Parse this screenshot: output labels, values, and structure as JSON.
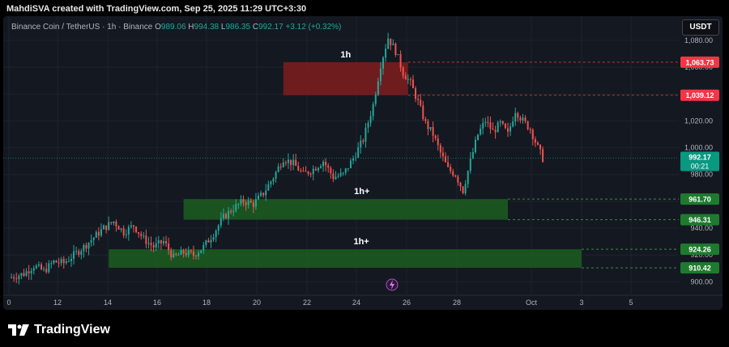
{
  "header": {
    "attribution": "MahdiSVA created with TradingView.com, Sep 25, 2025 11:29 UTC+3:30"
  },
  "legend": {
    "symbol": "Binance Coin / TetherUS · 1h · Binance",
    "o_label": "O",
    "o_value": "989.06",
    "h_label": "H",
    "h_value": "994.38",
    "l_label": "L",
    "l_value": "986.35",
    "c_label": "C",
    "c_value": "992.17",
    "change": "+3.12 (+0.32%)"
  },
  "currency_button": "USDT",
  "colors": {
    "up": "#26a69a",
    "down": "#ef5350",
    "supply_zone": "#7f1d1d",
    "demand_zone": "#1b5e20",
    "red_label": "#f23645",
    "green_label": "#1e7b2e",
    "price_label": "#089981"
  },
  "chart_data": {
    "type": "candlestick",
    "title": "",
    "x_ticks": [
      "0",
      "12",
      "14",
      "16",
      "18",
      "20",
      "22",
      "24",
      "26",
      "28",
      "Oct",
      "3",
      "5"
    ],
    "y_ticks": [
      "900.00",
      "920.00",
      "940.00",
      "960.00",
      "980.00",
      "1,000.00",
      "1,020.00",
      "1,040.00",
      "1,060.00",
      "1,080.00"
    ],
    "ylim": [
      893,
      1092
    ],
    "last_price": "992.17",
    "countdown": "00:21",
    "zones": [
      {
        "label": "1h",
        "kind": "supply",
        "low": 1039.12,
        "high": 1063.73,
        "low_label": "1,039.12",
        "high_label": "1,063.73",
        "start": "Sep 21",
        "end": "Sep 26"
      },
      {
        "label": "1h+",
        "kind": "demand",
        "low": 946.31,
        "high": 961.7,
        "low_label": "946.31",
        "high_label": "961.70",
        "start": "Sep 17",
        "end": "Sep 30"
      },
      {
        "label": "1h+",
        "kind": "demand",
        "low": 910.42,
        "high": 924.26,
        "low_label": "910.42",
        "high_label": "924.26",
        "start": "Sep 14",
        "end": "Oct 3"
      }
    ],
    "price_path": [
      [
        0.0,
        903
      ],
      [
        0.6,
        906
      ],
      [
        1.0,
        912
      ],
      [
        1.4,
        908
      ],
      [
        1.8,
        915
      ],
      [
        2.2,
        914
      ],
      [
        2.6,
        920
      ],
      [
        3.0,
        926
      ],
      [
        3.4,
        933
      ],
      [
        3.8,
        940
      ],
      [
        4.2,
        945
      ],
      [
        4.6,
        937
      ],
      [
        5.0,
        942
      ],
      [
        5.4,
        932
      ],
      [
        5.8,
        926
      ],
      [
        6.2,
        930
      ],
      [
        6.6,
        918
      ],
      [
        7.0,
        922
      ],
      [
        7.4,
        920
      ],
      [
        7.8,
        926
      ],
      [
        8.2,
        936
      ],
      [
        8.6,
        948
      ],
      [
        9.0,
        955
      ],
      [
        9.4,
        960
      ],
      [
        9.8,
        958
      ],
      [
        10.2,
        966
      ],
      [
        10.6,
        978
      ],
      [
        11.0,
        992
      ],
      [
        11.4,
        988
      ],
      [
        11.8,
        980
      ],
      [
        12.2,
        984
      ],
      [
        12.6,
        990
      ],
      [
        13.0,
        978
      ],
      [
        13.4,
        980
      ],
      [
        13.8,
        992
      ],
      [
        14.2,
        1006
      ],
      [
        14.6,
        1032
      ],
      [
        14.9,
        1062
      ],
      [
        15.2,
        1082
      ],
      [
        15.5,
        1072
      ],
      [
        15.8,
        1056
      ],
      [
        16.1,
        1048
      ],
      [
        16.4,
        1034
      ],
      [
        16.7,
        1018
      ],
      [
        17.0,
        1010
      ],
      [
        17.3,
        996
      ],
      [
        17.6,
        984
      ],
      [
        17.9,
        980
      ],
      [
        18.2,
        968
      ],
      [
        18.5,
        990
      ],
      [
        18.8,
        1010
      ],
      [
        19.1,
        1020
      ],
      [
        19.4,
        1012
      ],
      [
        19.7,
        1018
      ],
      [
        20.0,
        1010
      ],
      [
        20.3,
        1028
      ],
      [
        20.6,
        1020
      ],
      [
        20.9,
        1014
      ],
      [
        21.2,
        1000
      ],
      [
        21.4,
        992
      ]
    ]
  }
}
